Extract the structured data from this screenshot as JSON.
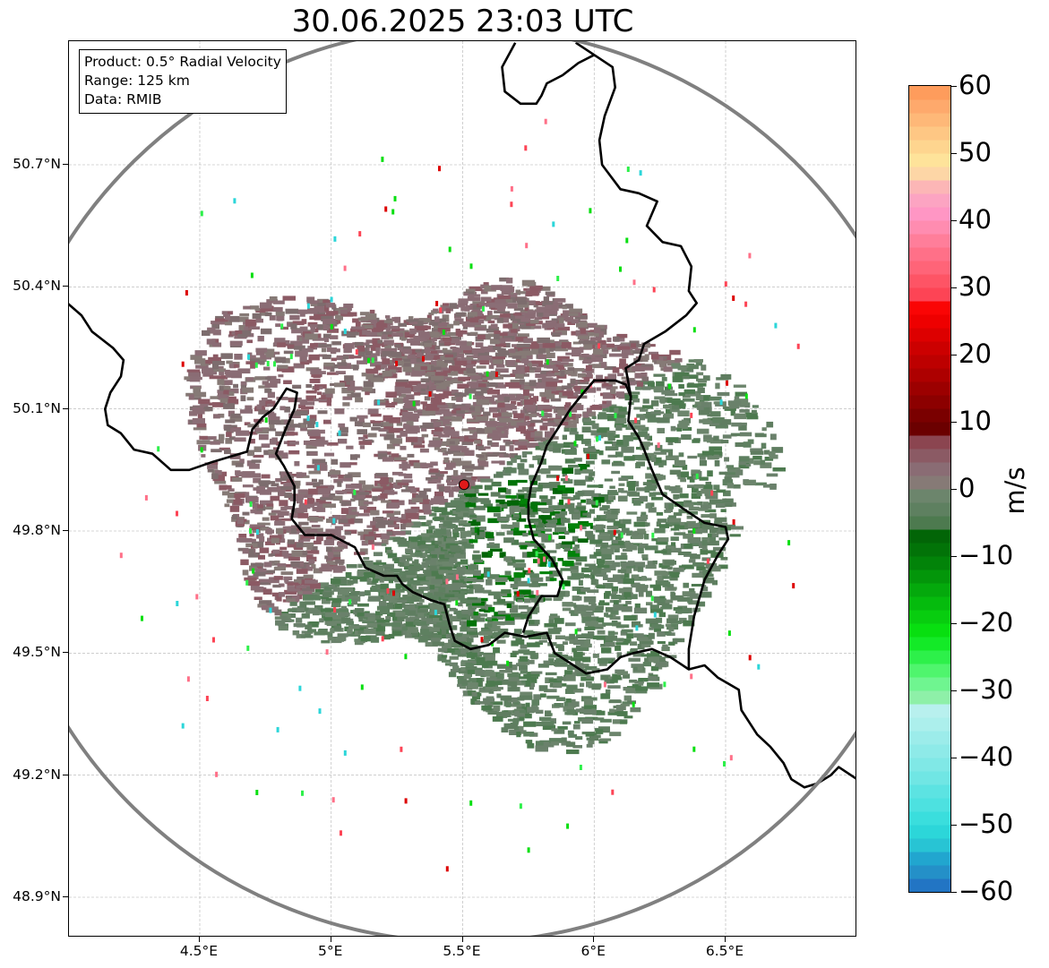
{
  "title": "30.06.2025 23:03 UTC",
  "info": {
    "product": "Product: 0.5° Radial Velocity",
    "range": "Range: 125 km",
    "data": "Data: RMIB"
  },
  "axes": {
    "lon_ticks": [
      {
        "value": 4.5,
        "label": "4.5°E"
      },
      {
        "value": 5.0,
        "label": "5°E"
      },
      {
        "value": 5.5,
        "label": "5.5°E"
      },
      {
        "value": 6.0,
        "label": "6°E"
      },
      {
        "value": 6.5,
        "label": "6.5°E"
      }
    ],
    "lat_ticks": [
      {
        "value": 50.7,
        "label": "50.7°N"
      },
      {
        "value": 50.4,
        "label": "50.4°N"
      },
      {
        "value": 50.1,
        "label": "50.1°N"
      },
      {
        "value": 49.8,
        "label": "49.8°N"
      },
      {
        "value": 49.5,
        "label": "49.5°N"
      },
      {
        "value": 49.2,
        "label": "49.2°N"
      },
      {
        "value": 48.9,
        "label": "48.9°N"
      }
    ],
    "lon_range": [
      4.0,
      7.0
    ],
    "lat_range": [
      48.8,
      51.0
    ],
    "grid": true
  },
  "radar": {
    "site_lon": 5.505,
    "site_lat": 49.914,
    "range_ring_km": 125,
    "site_marker_color": "#e0191a",
    "ring_color": "#808080"
  },
  "colorbar": {
    "unit": "m/s",
    "min": -60,
    "max": 60,
    "ticks": [
      {
        "value": 60,
        "label": "60"
      },
      {
        "value": 50,
        "label": "50"
      },
      {
        "value": 40,
        "label": "40"
      },
      {
        "value": 30,
        "label": "30"
      },
      {
        "value": 20,
        "label": "20"
      },
      {
        "value": 10,
        "label": "10"
      },
      {
        "value": 0,
        "label": "0"
      },
      {
        "value": -10,
        "label": "−10"
      },
      {
        "value": -20,
        "label": "−20"
      },
      {
        "value": -30,
        "label": "−30"
      },
      {
        "value": -40,
        "label": "−40"
      },
      {
        "value": -50,
        "label": "−50"
      },
      {
        "value": -60,
        "label": "−60"
      }
    ],
    "bands": [
      {
        "from": -60,
        "to": -58,
        "color": "#2275c4"
      },
      {
        "from": -58,
        "to": -56,
        "color": "#2490c8"
      },
      {
        "from": -56,
        "to": -54,
        "color": "#21a6cf"
      },
      {
        "from": -54,
        "to": -52,
        "color": "#28c4d4"
      },
      {
        "from": -52,
        "to": -50,
        "color": "#2cd6d9"
      },
      {
        "from": -50,
        "to": -48,
        "color": "#3adedd"
      },
      {
        "from": -48,
        "to": -46,
        "color": "#4de1e0"
      },
      {
        "from": -46,
        "to": -44,
        "color": "#5ce3e2"
      },
      {
        "from": -44,
        "to": -42,
        "color": "#70e6e4"
      },
      {
        "from": -42,
        "to": -40,
        "color": "#80e8e6"
      },
      {
        "from": -40,
        "to": -38,
        "color": "#8eeae8"
      },
      {
        "from": -38,
        "to": -36,
        "color": "#9cecea"
      },
      {
        "from": -36,
        "to": -34,
        "color": "#acefec"
      },
      {
        "from": -34,
        "to": -32,
        "color": "#b8f0ee"
      },
      {
        "from": -32,
        "to": -30,
        "color": "#8ef0a8"
      },
      {
        "from": -30,
        "to": -28,
        "color": "#6ff590"
      },
      {
        "from": -28,
        "to": -26,
        "color": "#4ff56d"
      },
      {
        "from": -26,
        "to": -24,
        "color": "#2df04a"
      },
      {
        "from": -24,
        "to": -22,
        "color": "#13ea27"
      },
      {
        "from": -22,
        "to": -20,
        "color": "#08df10"
      },
      {
        "from": -20,
        "to": -18,
        "color": "#08cd0f"
      },
      {
        "from": -18,
        "to": -16,
        "color": "#05bb0d"
      },
      {
        "from": -16,
        "to": -14,
        "color": "#04a90c"
      },
      {
        "from": -14,
        "to": -12,
        "color": "#03960a"
      },
      {
        "from": -12,
        "to": -10,
        "color": "#028309"
      },
      {
        "from": -10,
        "to": -8,
        "color": "#027308"
      },
      {
        "from": -8,
        "to": -6,
        "color": "#026507"
      },
      {
        "from": -6,
        "to": -4,
        "color": "#4d7a4f"
      },
      {
        "from": -4,
        "to": -2,
        "color": "#5e8060"
      },
      {
        "from": -2,
        "to": 0,
        "color": "#6c856c"
      },
      {
        "from": 0,
        "to": 2,
        "color": "#867a76"
      },
      {
        "from": 2,
        "to": 4,
        "color": "#8a6c74"
      },
      {
        "from": 4,
        "to": 6,
        "color": "#8b5a64"
      },
      {
        "from": 6,
        "to": 8,
        "color": "#8b4550"
      },
      {
        "from": 8,
        "to": 10,
        "color": "#6b0000"
      },
      {
        "from": 10,
        "to": 12,
        "color": "#7a0000"
      },
      {
        "from": 12,
        "to": 14,
        "color": "#8c0000"
      },
      {
        "from": 14,
        "to": 16,
        "color": "#9c0000"
      },
      {
        "from": 16,
        "to": 18,
        "color": "#ad0000"
      },
      {
        "from": 18,
        "to": 20,
        "color": "#bd0000"
      },
      {
        "from": 20,
        "to": 22,
        "color": "#cc0000"
      },
      {
        "from": 22,
        "to": 24,
        "color": "#dd0000"
      },
      {
        "from": 24,
        "to": 26,
        "color": "#ee0000"
      },
      {
        "from": 26,
        "to": 28,
        "color": "#fa0505"
      },
      {
        "from": 28,
        "to": 30,
        "color": "#fd4455"
      },
      {
        "from": 30,
        "to": 32,
        "color": "#fe5465"
      },
      {
        "from": 32,
        "to": 34,
        "color": "#ff6478"
      },
      {
        "from": 34,
        "to": 36,
        "color": "#ff7088"
      },
      {
        "from": 36,
        "to": 38,
        "color": "#ff7e9a"
      },
      {
        "from": 38,
        "to": 40,
        "color": "#ff8cb0"
      },
      {
        "from": 40,
        "to": 42,
        "color": "#ff96c4"
      },
      {
        "from": 42,
        "to": 44,
        "color": "#fca4c2"
      },
      {
        "from": 44,
        "to": 46,
        "color": "#fcb6b6"
      },
      {
        "from": 46,
        "to": 48,
        "color": "#fdd6a6"
      },
      {
        "from": 48,
        "to": 50,
        "color": "#fee39a"
      },
      {
        "from": 50,
        "to": 52,
        "color": "#fed58f"
      },
      {
        "from": 52,
        "to": 54,
        "color": "#fec784"
      },
      {
        "from": 54,
        "to": 56,
        "color": "#feb878"
      },
      {
        "from": 56,
        "to": 58,
        "color": "#fea96c"
      },
      {
        "from": 58,
        "to": 60,
        "color": "#fe9c5c"
      }
    ]
  },
  "borders": {
    "color": "#000000",
    "lines": [
      [
        [
          4.0,
          50.358
        ],
        [
          4.05,
          50.33
        ],
        [
          4.09,
          50.29
        ],
        [
          4.13,
          50.27
        ],
        [
          4.17,
          50.25
        ],
        [
          4.21,
          50.22
        ],
        [
          4.2,
          50.18
        ],
        [
          4.16,
          50.14
        ],
        [
          4.14,
          50.1
        ],
        [
          4.15,
          50.06
        ],
        [
          4.2,
          50.04
        ],
        [
          4.25,
          50.0
        ],
        [
          4.32,
          49.99
        ],
        [
          4.39,
          49.95
        ],
        [
          4.46,
          49.95
        ],
        [
          4.55,
          49.97
        ],
        [
          4.68,
          49.995
        ],
        [
          4.7,
          50.05
        ],
        [
          4.74,
          50.08
        ],
        [
          4.78,
          50.1
        ],
        [
          4.83,
          50.15
        ],
        [
          4.87,
          50.14
        ],
        [
          4.86,
          50.1
        ],
        [
          4.82,
          50.04
        ],
        [
          4.79,
          49.99
        ],
        [
          4.82,
          49.96
        ],
        [
          4.86,
          49.91
        ],
        [
          4.86,
          49.87
        ],
        [
          4.85,
          49.83
        ],
        [
          4.9,
          49.79
        ],
        [
          5.0,
          49.79
        ],
        [
          5.06,
          49.77
        ],
        [
          5.09,
          49.76
        ],
        [
          5.13,
          49.71
        ],
        [
          5.2,
          49.69
        ],
        [
          5.25,
          49.69
        ],
        [
          5.27,
          49.67
        ],
        [
          5.31,
          49.65
        ],
        [
          5.38,
          49.63
        ],
        [
          5.43,
          49.62
        ],
        [
          5.45,
          49.57
        ],
        [
          5.47,
          49.53
        ],
        [
          5.53,
          49.51
        ],
        [
          5.6,
          49.52
        ],
        [
          5.66,
          49.55
        ],
        [
          5.74,
          49.54
        ],
        [
          5.82,
          49.55
        ],
        [
          5.85,
          49.5
        ],
        [
          5.97,
          49.45
        ],
        [
          6.05,
          49.46
        ],
        [
          6.1,
          49.49
        ],
        [
          6.15,
          49.5
        ],
        [
          6.22,
          49.51
        ],
        [
          6.29,
          49.49
        ],
        [
          6.36,
          49.46
        ],
        [
          6.42,
          49.47
        ],
        [
          6.47,
          49.44
        ],
        [
          6.55,
          49.41
        ],
        [
          6.56,
          49.36
        ],
        [
          6.62,
          49.3
        ],
        [
          6.67,
          49.27
        ],
        [
          6.72,
          49.23
        ],
        [
          6.75,
          49.19
        ],
        [
          6.8,
          49.17
        ],
        [
          6.85,
          49.18
        ],
        [
          6.9,
          49.2
        ],
        [
          6.93,
          49.22
        ],
        [
          7.0,
          49.19
        ]
      ],
      [
        [
          5.73,
          49.55
        ],
        [
          5.75,
          49.59
        ],
        [
          5.8,
          49.64
        ],
        [
          5.86,
          49.64
        ],
        [
          5.88,
          49.68
        ],
        [
          5.84,
          49.73
        ],
        [
          5.77,
          49.78
        ],
        [
          5.75,
          49.83
        ],
        [
          5.75,
          49.87
        ],
        [
          5.76,
          49.91
        ],
        [
          5.8,
          49.97
        ],
        [
          5.82,
          50.01
        ],
        [
          5.86,
          50.05
        ],
        [
          5.91,
          50.1
        ],
        [
          5.96,
          50.14
        ],
        [
          6.0,
          50.17
        ],
        [
          6.08,
          50.17
        ],
        [
          6.12,
          50.16
        ],
        [
          6.14,
          50.13
        ],
        [
          6.13,
          50.07
        ],
        [
          6.17,
          50.03
        ],
        [
          6.19,
          50.0
        ],
        [
          6.22,
          49.95
        ],
        [
          6.26,
          49.89
        ],
        [
          6.35,
          49.85
        ],
        [
          6.42,
          49.82
        ],
        [
          6.5,
          49.81
        ],
        [
          6.51,
          49.78
        ],
        [
          6.47,
          49.74
        ],
        [
          6.42,
          49.68
        ],
        [
          6.38,
          49.59
        ],
        [
          6.36,
          49.51
        ],
        [
          6.36,
          49.46
        ]
      ],
      [
        [
          6.14,
          50.13
        ],
        [
          6.12,
          50.2
        ],
        [
          6.17,
          50.22
        ],
        [
          6.19,
          50.26
        ],
        [
          6.27,
          50.29
        ],
        [
          6.35,
          50.33
        ],
        [
          6.39,
          50.36
        ],
        [
          6.36,
          50.39
        ],
        [
          6.37,
          50.45
        ],
        [
          6.33,
          50.5
        ],
        [
          6.26,
          50.51
        ],
        [
          6.2,
          50.55
        ],
        [
          6.24,
          50.61
        ],
        [
          6.17,
          50.63
        ],
        [
          6.1,
          50.64
        ],
        [
          6.03,
          50.7
        ],
        [
          6.02,
          50.76
        ],
        [
          6.04,
          50.82
        ],
        [
          6.08,
          50.89
        ],
        [
          6.07,
          50.94
        ],
        [
          6.0,
          50.97
        ],
        [
          5.93,
          51.0
        ]
      ],
      [
        [
          5.7,
          51.0
        ],
        [
          5.65,
          50.94
        ],
        [
          5.66,
          50.88
        ],
        [
          5.72,
          50.85
        ],
        [
          5.78,
          50.85
        ],
        [
          5.8,
          50.87
        ],
        [
          5.82,
          50.9
        ],
        [
          5.88,
          50.92
        ],
        [
          5.94,
          50.95
        ],
        [
          6.0,
          50.97
        ]
      ]
    ]
  }
}
